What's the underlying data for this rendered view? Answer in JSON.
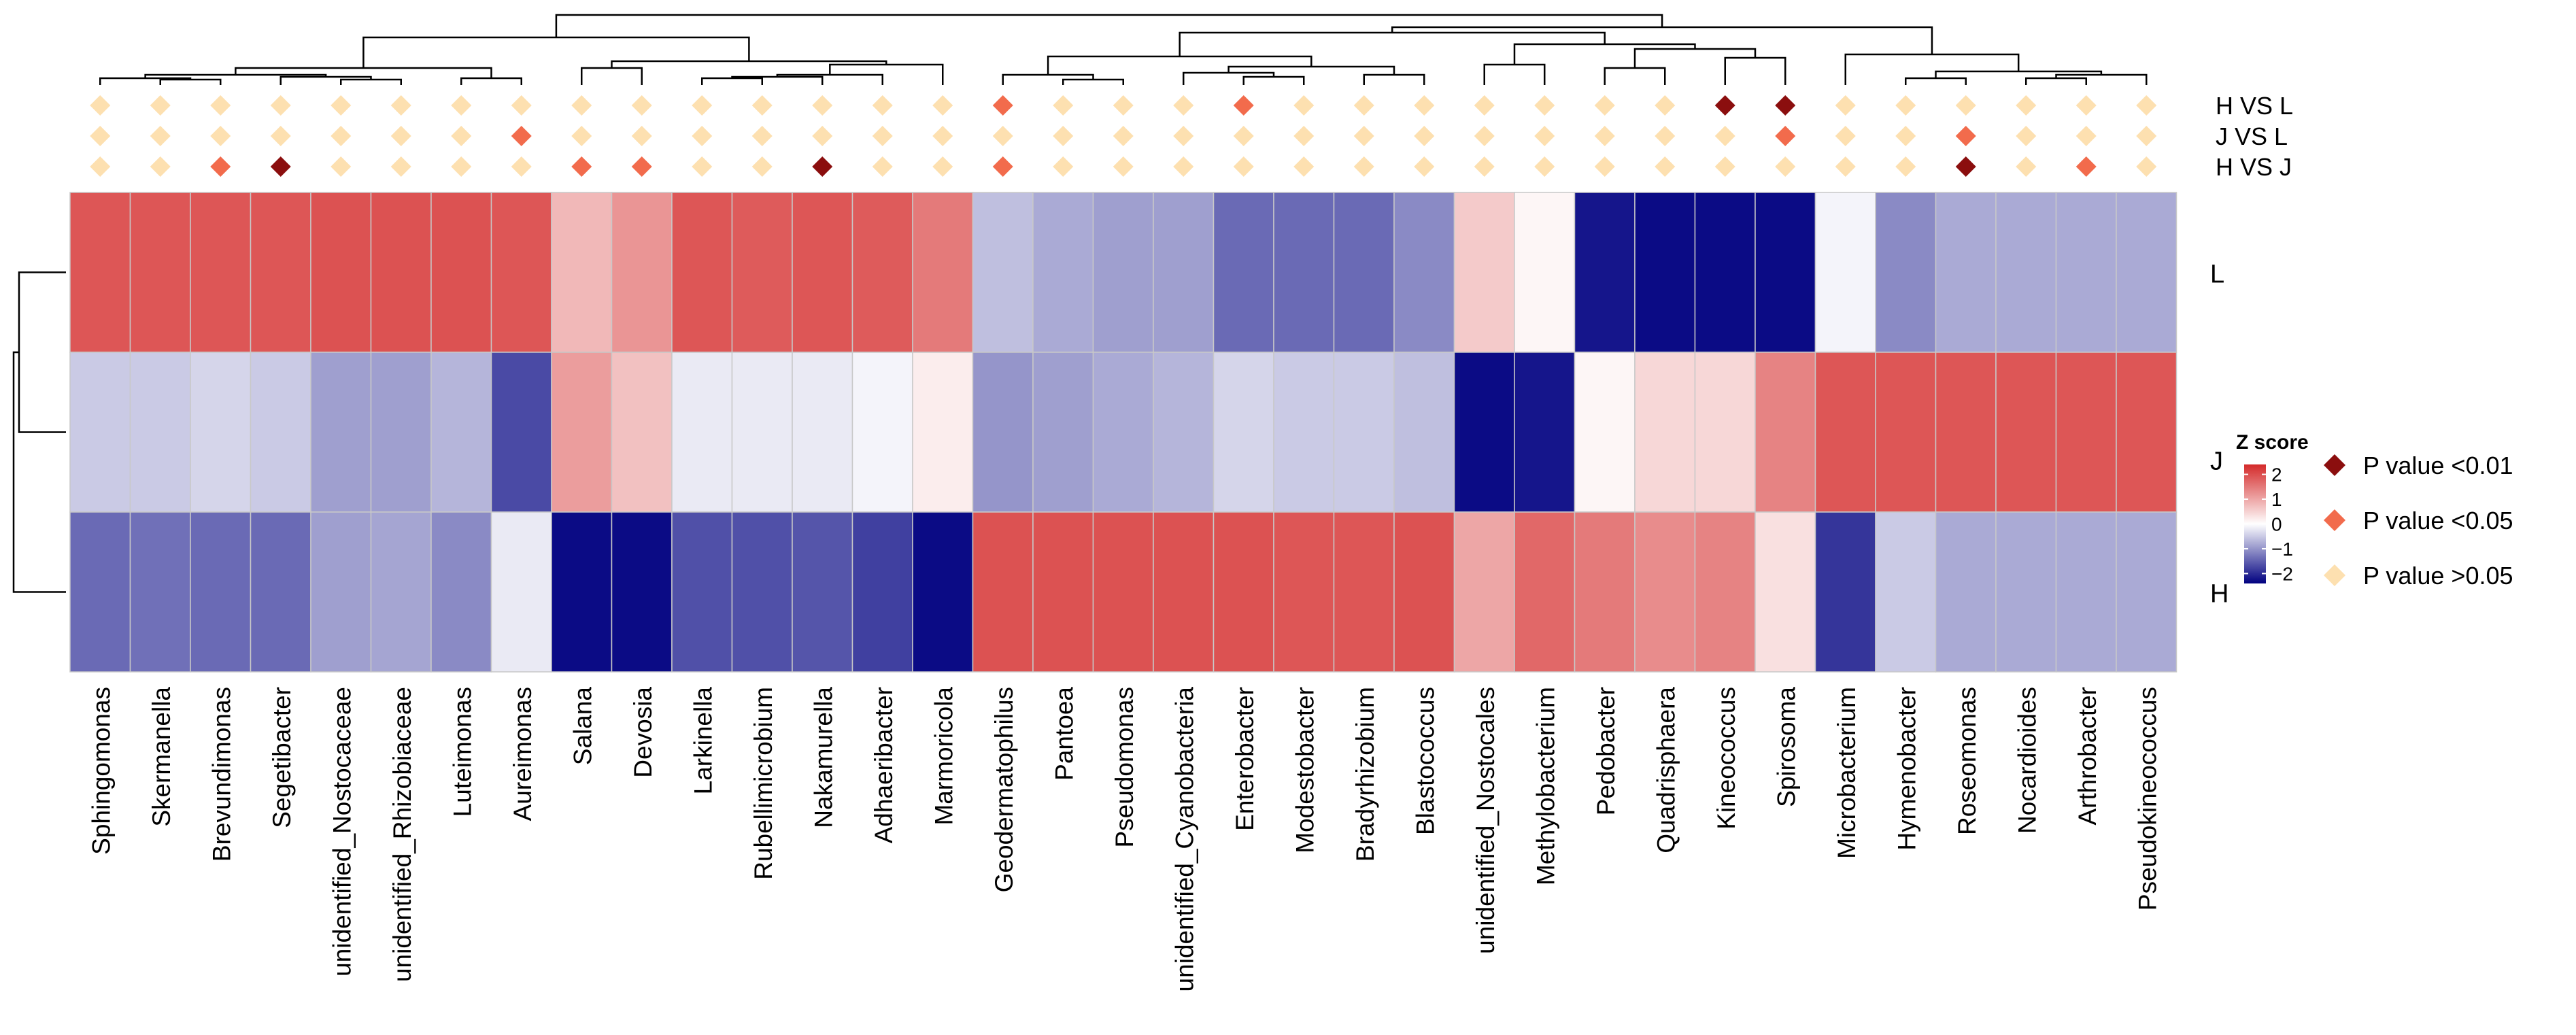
{
  "chart_data": {
    "type": "heatmap",
    "title": "",
    "columns": [
      "Sphingomonas",
      "Skermanella",
      "Brevundimonas",
      "Segetibacter",
      "unidentified_Nostocaceae",
      "unidentified_Rhizobiaceae",
      "Luteimonas",
      "Aureimonas",
      "Salana",
      "Devosia",
      "Larkinella",
      "Rubellimicrobium",
      "Nakamurella",
      "Adhaeribacter",
      "Marmoricola",
      "Geodermatophilus",
      "Pantoea",
      "Pseudomonas",
      "unidentified_Cyanobacteria",
      "Enterobacter",
      "Modestobacter",
      "Bradyrhizobium",
      "Blastococcus",
      "unidentified_Nostocales",
      "Methylobacterium",
      "Pedobacter",
      "Quadrisphaera",
      "Kineococcus",
      "Spirosoma",
      "Microbacterium",
      "Hymenobacter",
      "Roseomonas",
      "Nocardioides",
      "Arthrobacter",
      "Pseudokineococcus"
    ],
    "rows": [
      "L",
      "J",
      "H"
    ],
    "z_scores": [
      [
        1.9,
        1.9,
        1.9,
        1.9,
        1.95,
        1.95,
        1.95,
        1.9,
        0.8,
        1.2,
        1.9,
        1.85,
        1.9,
        1.85,
        1.5,
        -0.6,
        -0.8,
        -0.9,
        -0.9,
        -1.4,
        -1.4,
        -1.4,
        -1.1,
        0.6,
        0.1,
        -2.2,
        -2.3,
        -2.3,
        -2.3,
        -0.1,
        -1.1,
        -0.8,
        -0.8,
        -0.8,
        -0.8
      ],
      [
        -0.5,
        -0.5,
        -0.4,
        -0.5,
        -0.9,
        -0.9,
        -0.7,
        -1.7,
        1.1,
        0.7,
        -0.2,
        -0.2,
        -0.2,
        -0.1,
        0.2,
        -1.0,
        -0.9,
        -0.8,
        -0.7,
        -0.4,
        -0.5,
        -0.5,
        -0.6,
        -2.3,
        -2.2,
        0.1,
        0.45,
        0.45,
        1.4,
        1.9,
        1.9,
        1.9,
        1.9,
        1.9,
        1.9
      ],
      [
        -1.4,
        -1.35,
        -1.4,
        -1.4,
        -0.9,
        -0.85,
        -1.1,
        -0.2,
        -2.3,
        -2.3,
        -1.65,
        -1.65,
        -1.6,
        -1.8,
        -2.3,
        1.95,
        1.95,
        1.95,
        1.95,
        1.95,
        1.9,
        1.9,
        1.95,
        1.0,
        1.7,
        1.5,
        1.3,
        1.4,
        0.35,
        -1.9,
        -0.5,
        -0.8,
        -0.8,
        -0.8,
        -0.8
      ]
    ],
    "significance_rows": [
      "H VS L",
      "J VS L",
      "H VS J"
    ],
    "significance": [
      [
        "ns",
        "ns",
        "ns",
        "ns",
        "ns",
        "ns",
        "ns",
        "ns",
        "ns",
        "ns",
        "ns",
        "ns",
        "ns",
        "ns",
        "ns",
        "p05",
        "ns",
        "ns",
        "ns",
        "p05",
        "ns",
        "ns",
        "ns",
        "ns",
        "ns",
        "ns",
        "ns",
        "p01",
        "p01",
        "ns",
        "ns",
        "ns",
        "ns",
        "ns",
        "ns"
      ],
      [
        "ns",
        "ns",
        "ns",
        "ns",
        "ns",
        "ns",
        "ns",
        "p05",
        "ns",
        "ns",
        "ns",
        "ns",
        "ns",
        "ns",
        "ns",
        "ns",
        "ns",
        "ns",
        "ns",
        "ns",
        "ns",
        "ns",
        "ns",
        "ns",
        "ns",
        "ns",
        "ns",
        "ns",
        "p05",
        "ns",
        "ns",
        "p05",
        "ns",
        "ns",
        "ns"
      ],
      [
        "ns",
        "ns",
        "p05",
        "p01",
        "ns",
        "ns",
        "ns",
        "ns",
        "p05",
        "p05",
        "ns",
        "ns",
        "p01",
        "ns",
        "ns",
        "p05",
        "ns",
        "ns",
        "ns",
        "ns",
        "ns",
        "ns",
        "ns",
        "ns",
        "ns",
        "ns",
        "ns",
        "ns",
        "ns",
        "ns",
        "ns",
        "p01",
        "ns",
        "p05",
        "ns"
      ]
    ],
    "legend": {
      "colorbar_title": "Z score",
      "colorbar_ticks": [
        "2",
        "1",
        "0",
        "−1",
        "−2"
      ],
      "colorbar_tick_values": [
        2,
        1,
        0,
        -1,
        -2
      ],
      "colorbar_range": [
        -2.4,
        2.4
      ],
      "items": [
        {
          "key": "p01",
          "label": "P value <0.01",
          "color": "#8b0e0e"
        },
        {
          "key": "p05",
          "label": "P value <0.05",
          "color": "#f26b4c"
        },
        {
          "key": "ns",
          "label": "P value >0.05",
          "color": "#fde0b0"
        }
      ]
    },
    "colors": {
      "high": "#d42a2a",
      "mid": "#ffffff",
      "low": "#000080"
    }
  }
}
